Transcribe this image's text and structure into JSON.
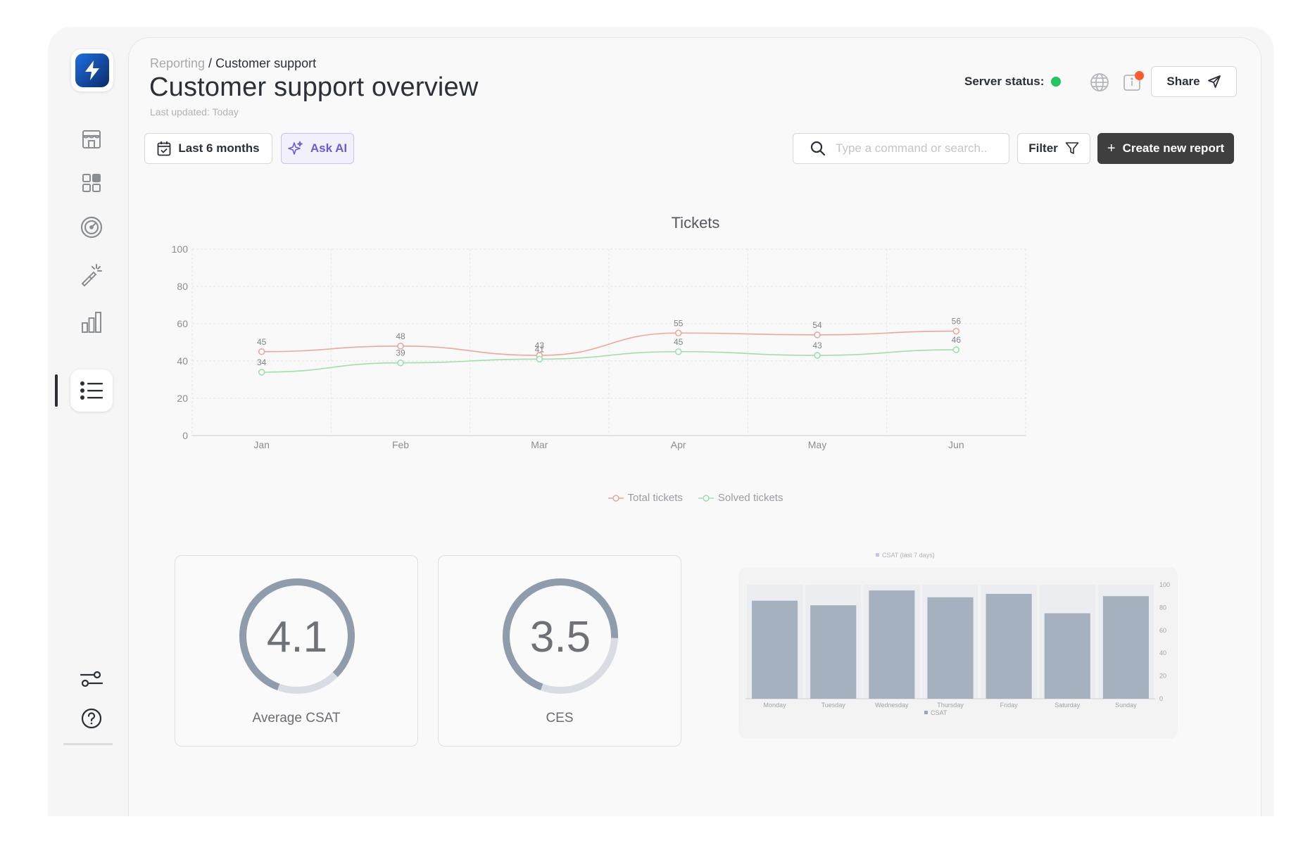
{
  "breadcrumb": {
    "parent": "Reporting",
    "separator": " / ",
    "current": "Customer support"
  },
  "header": {
    "title": "Customer support overview",
    "last_updated": "Last updated: Today",
    "server_status_label": "Server status:",
    "server_status_color": "#22c55e",
    "share_label": "Share"
  },
  "toolbar": {
    "date_range_label": "Last 6 months",
    "ask_ai_label": "Ask AI",
    "search_placeholder": "Type a command or search..",
    "filter_label": "Filter",
    "create_label": "Create new report"
  },
  "sidebar": {
    "items": [
      {
        "name": "store-icon"
      },
      {
        "name": "grid-icon"
      },
      {
        "name": "speedometer-icon"
      },
      {
        "name": "magic-wand-icon"
      },
      {
        "name": "bar-chart-icon"
      },
      {
        "name": "list-icon",
        "active": true
      }
    ],
    "bottom": [
      {
        "name": "settings-sliders-icon"
      },
      {
        "name": "help-icon"
      }
    ]
  },
  "chart_data": [
    {
      "type": "line",
      "title": "Tickets",
      "categories": [
        "Jan",
        "Feb",
        "Mar",
        "Apr",
        "May",
        "Jun"
      ],
      "series": [
        {
          "name": "Total tickets",
          "color": "#f0a69a",
          "values": [
            45,
            48,
            43,
            55,
            54,
            56
          ]
        },
        {
          "name": "Solved tickets",
          "color": "#9ee0ac",
          "values": [
            34,
            39,
            41,
            45,
            43,
            46
          ]
        }
      ],
      "ylim": [
        0,
        100
      ],
      "yticks": [
        0,
        20,
        40,
        60,
        80,
        100
      ],
      "grid": true,
      "legend": "bottom"
    },
    {
      "type": "bar",
      "legend_top": "CSAT (last 7 days)",
      "categories": [
        "Monday",
        "Tuesday",
        "Wednesday",
        "Thursday",
        "Friday",
        "Saturday",
        "Sunday"
      ],
      "series": [
        {
          "name": "CSAT",
          "color": "#a5b1bf",
          "values": [
            86,
            82,
            95,
            89,
            92,
            75,
            90
          ]
        }
      ],
      "ylim": [
        0,
        100
      ],
      "yticks": [
        0,
        20,
        40,
        60,
        80,
        100
      ],
      "y_axis_side": "right"
    }
  ],
  "gauges": [
    {
      "label": "Average CSAT",
      "display": "4.1",
      "value": 4.1,
      "max": 5
    },
    {
      "label": "CES",
      "display": "3.5",
      "value": 3.5,
      "max": 5
    }
  ]
}
